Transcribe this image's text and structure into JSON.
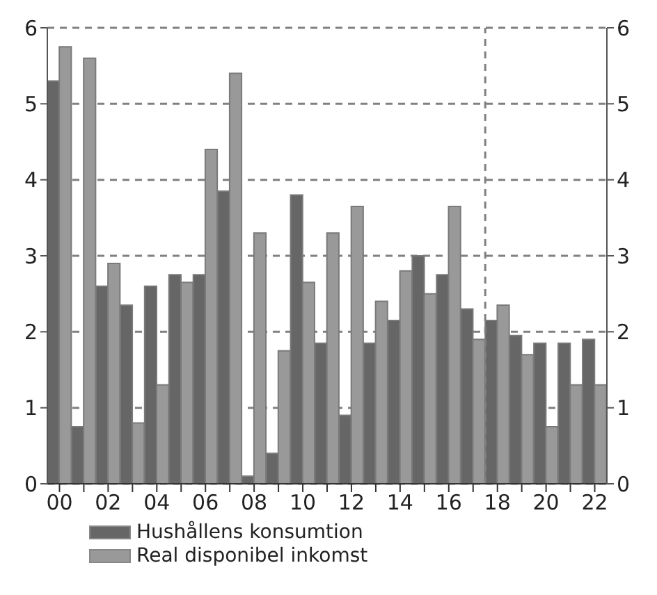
{
  "chart_data": {
    "type": "bar",
    "x": [
      2000,
      2001,
      2002,
      2003,
      2004,
      2005,
      2006,
      2007,
      2008,
      2009,
      2010,
      2011,
      2012,
      2013,
      2014,
      2015,
      2016,
      2017,
      2018,
      2019,
      2020,
      2021,
      2022
    ],
    "series": [
      {
        "name": "Hushållens konsumtion",
        "color": "#666666",
        "values": [
          5.3,
          0.75,
          2.6,
          2.35,
          2.6,
          2.75,
          2.75,
          3.85,
          0.1,
          0.4,
          3.8,
          1.85,
          0.9,
          1.85,
          2.15,
          3.0,
          2.75,
          2.3,
          2.15,
          1.95,
          1.85,
          1.85,
          1.9
        ]
      },
      {
        "name": "Real disponibel inkomst",
        "color": "#999999",
        "values": [
          5.75,
          5.6,
          2.9,
          0.8,
          1.3,
          2.65,
          4.4,
          5.4,
          3.3,
          1.75,
          2.65,
          3.3,
          3.65,
          2.4,
          2.8,
          2.5,
          3.65,
          1.9,
          2.35,
          1.7,
          0.75,
          1.3,
          1.3
        ]
      }
    ],
    "xlim": [
      1999.5,
      2022.5
    ],
    "xticks": [
      {
        "value": 2000,
        "label": "00"
      },
      {
        "value": 2001,
        "label": null
      },
      {
        "value": 2002,
        "label": "02"
      },
      {
        "value": 2003,
        "label": null
      },
      {
        "value": 2004,
        "label": "04"
      },
      {
        "value": 2005,
        "label": null
      },
      {
        "value": 2006,
        "label": "06"
      },
      {
        "value": 2007,
        "label": null
      },
      {
        "value": 2008,
        "label": "08"
      },
      {
        "value": 2009,
        "label": null
      },
      {
        "value": 2010,
        "label": "10"
      },
      {
        "value": 2011,
        "label": null
      },
      {
        "value": 2012,
        "label": "12"
      },
      {
        "value": 2013,
        "label": null
      },
      {
        "value": 2014,
        "label": "14"
      },
      {
        "value": 2015,
        "label": null
      },
      {
        "value": 2016,
        "label": "16"
      },
      {
        "value": 2017,
        "label": null
      },
      {
        "value": 2018,
        "label": "18"
      },
      {
        "value": 2019,
        "label": null
      },
      {
        "value": 2020,
        "label": "20"
      },
      {
        "value": 2021,
        "label": null
      },
      {
        "value": 2022,
        "label": "22"
      }
    ],
    "ylim": [
      0,
      6
    ],
    "yticks": [
      0,
      1,
      2,
      3,
      4,
      5,
      6
    ],
    "y2lim": [
      0,
      6
    ],
    "y2ticks": [
      0,
      1,
      2,
      3,
      4,
      5,
      6
    ],
    "ref_lines": [
      {
        "axis": "x",
        "value": 2017.5,
        "color": "#808080",
        "line_style": "dashed"
      }
    ],
    "grid": "y",
    "legend": "bottom left"
  }
}
